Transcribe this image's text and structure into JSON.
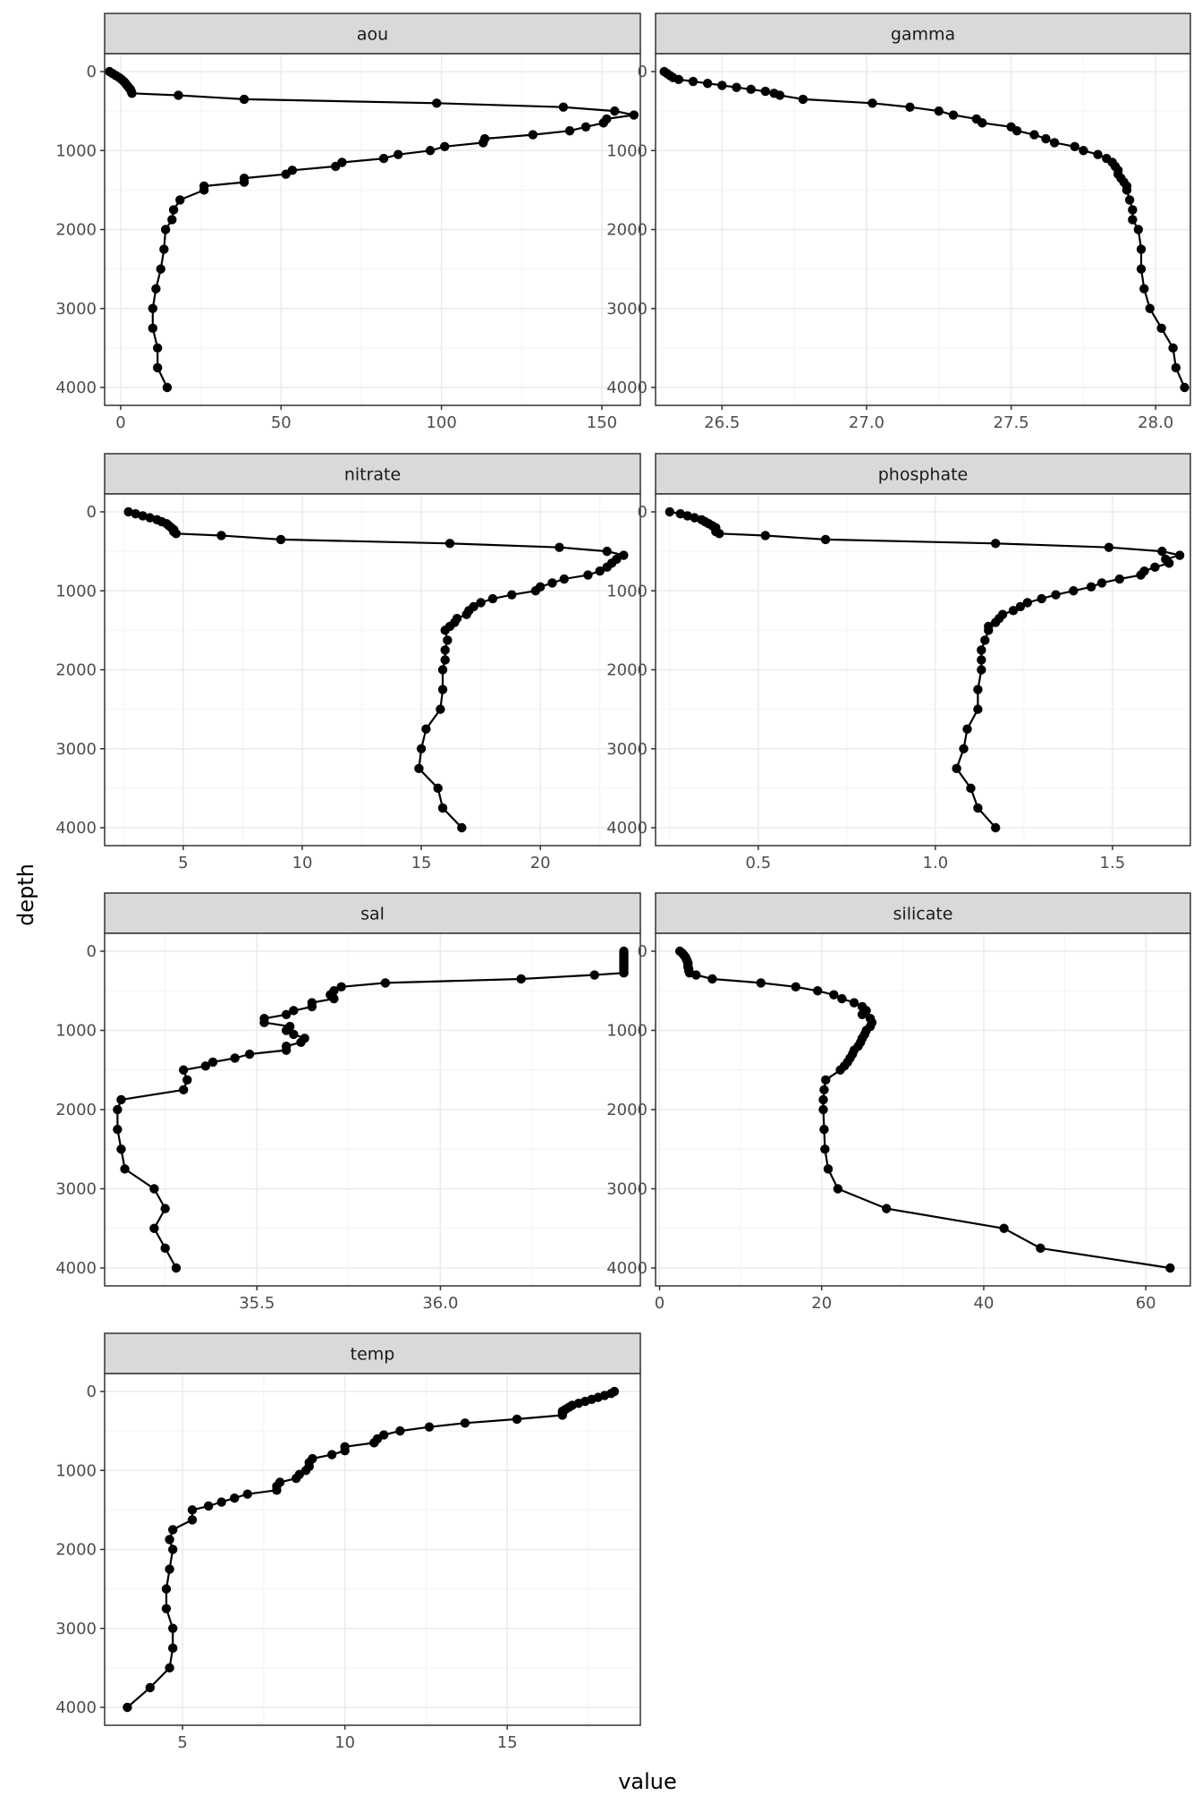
{
  "chart_data": {
    "type": "scatter",
    "layout": "facet_wrap",
    "xlabel": "value",
    "ylabel": "depth",
    "y_reversed": true,
    "ylim": [
      4000,
      0
    ],
    "yticks": [
      0,
      1000,
      2000,
      3000,
      4000
    ],
    "colors": {
      "point": "#000000",
      "line": "#000000",
      "strip_fill": "#d9d9d9",
      "strip_border": "#333333",
      "panel_border": "#333333",
      "grid_major": "#ebebeb",
      "grid_minor": "#f4f4f4"
    },
    "grid": true,
    "depth": [
      0,
      25,
      50,
      75,
      100,
      125,
      150,
      175,
      200,
      225,
      250,
      275,
      300,
      350,
      400,
      450,
      500,
      550,
      600,
      650,
      700,
      750,
      800,
      850,
      900,
      950,
      1000,
      1050,
      1100,
      1150,
      1200,
      1250,
      1300,
      1350,
      1400,
      1450,
      1500,
      1625,
      1750,
      1875,
      2000,
      2250,
      2500,
      2750,
      3000,
      3250,
      3500,
      3750,
      4000
    ],
    "facets": [
      {
        "name": "aou",
        "xlim": [
          -5,
          162
        ],
        "xticks": [
          0,
          50,
          100,
          150
        ],
        "xtick_labels": [
          "0",
          "50",
          "100",
          "150"
        ],
        "values": [
          -3.5,
          -2.5,
          -1.5,
          -0.5,
          0.3,
          1.0,
          1.5,
          2.0,
          2.5,
          3.0,
          3.3,
          3.5,
          18.0,
          38.5,
          98.5,
          138.0,
          154.0,
          160.0,
          151.5,
          150.5,
          145.0,
          140.0,
          128.5,
          113.5,
          113.0,
          101.0,
          96.5,
          86.5,
          82.0,
          69.0,
          67.0,
          53.5,
          51.5,
          38.5,
          38.5,
          26.0,
          26.0,
          18.5,
          16.5,
          16.0,
          14.0,
          13.5,
          12.5,
          11.0,
          10.0,
          10.0,
          11.5,
          11.5,
          14.5
        ]
      },
      {
        "name": "gamma",
        "xlim": [
          26.27,
          28.12
        ],
        "xticks": [
          26.5,
          27.0,
          27.5,
          28.0
        ],
        "xtick_labels": [
          "26.5",
          "27.0",
          "27.5",
          "28.0"
        ],
        "values": [
          26.3,
          26.31,
          26.32,
          26.33,
          26.35,
          26.4,
          26.45,
          26.5,
          26.55,
          26.6,
          26.65,
          26.68,
          26.7,
          26.78,
          27.02,
          27.15,
          27.25,
          27.3,
          27.38,
          27.4,
          27.5,
          27.52,
          27.58,
          27.62,
          27.65,
          27.72,
          27.75,
          27.8,
          27.83,
          27.85,
          27.86,
          27.87,
          27.87,
          27.88,
          27.89,
          27.9,
          27.9,
          27.91,
          27.92,
          27.92,
          27.94,
          27.95,
          27.95,
          27.96,
          27.98,
          28.02,
          28.06,
          28.07,
          28.1
        ]
      },
      {
        "name": "nitrate",
        "xlim": [
          1.7,
          24.2
        ],
        "xticks": [
          5,
          10,
          15,
          20
        ],
        "xtick_labels": [
          "5",
          "10",
          "15",
          "20"
        ],
        "values": [
          2.7,
          3.0,
          3.3,
          3.6,
          3.9,
          4.1,
          4.3,
          4.4,
          4.5,
          4.6,
          4.6,
          4.7,
          6.6,
          9.1,
          16.2,
          20.8,
          22.8,
          23.5,
          23.2,
          23.0,
          22.8,
          22.5,
          22.0,
          21.0,
          20.5,
          20.0,
          19.8,
          18.8,
          18.0,
          17.5,
          17.2,
          17.0,
          16.9,
          16.5,
          16.4,
          16.2,
          16.0,
          16.1,
          16.0,
          16.0,
          15.9,
          15.9,
          15.8,
          15.2,
          15.0,
          14.9,
          15.7,
          15.9,
          16.7
        ]
      },
      {
        "name": "phosphate",
        "xlim": [
          0.21,
          1.72
        ],
        "xticks": [
          0.5,
          1.0,
          1.5
        ],
        "xtick_labels": [
          "0.5",
          "1.0",
          "1.5"
        ],
        "values": [
          0.25,
          0.28,
          0.3,
          0.32,
          0.34,
          0.35,
          0.36,
          0.37,
          0.38,
          0.38,
          0.38,
          0.39,
          0.52,
          0.69,
          1.17,
          1.49,
          1.64,
          1.69,
          1.65,
          1.66,
          1.62,
          1.59,
          1.58,
          1.52,
          1.47,
          1.44,
          1.39,
          1.34,
          1.3,
          1.26,
          1.24,
          1.22,
          1.19,
          1.18,
          1.17,
          1.15,
          1.15,
          1.14,
          1.13,
          1.13,
          1.13,
          1.12,
          1.12,
          1.09,
          1.08,
          1.06,
          1.1,
          1.12,
          1.17
        ]
      },
      {
        "name": "sal",
        "xlim": [
          35.085,
          36.545
        ],
        "xticks": [
          35.5,
          36.0
        ],
        "xtick_labels": [
          "35.5",
          "36.0"
        ],
        "values": [
          36.5,
          36.5,
          36.5,
          36.5,
          36.5,
          36.5,
          36.5,
          36.5,
          36.5,
          36.5,
          36.5,
          36.5,
          36.42,
          36.22,
          35.85,
          35.73,
          35.71,
          35.7,
          35.71,
          35.65,
          35.65,
          35.6,
          35.58,
          35.52,
          35.52,
          35.59,
          35.58,
          35.6,
          35.63,
          35.62,
          35.58,
          35.58,
          35.48,
          35.44,
          35.38,
          35.36,
          35.3,
          35.31,
          35.3,
          35.13,
          35.12,
          35.12,
          35.13,
          35.14,
          35.22,
          35.25,
          35.22,
          35.25,
          35.28
        ]
      },
      {
        "name": "silicate",
        "xlim": [
          -0.5,
          65.5
        ],
        "xticks": [
          0,
          20,
          40,
          60
        ],
        "xtick_labels": [
          "0",
          "20",
          "40",
          "60"
        ],
        "values": [
          2.5,
          2.8,
          3.0,
          3.2,
          3.3,
          3.4,
          3.5,
          3.5,
          3.5,
          3.6,
          3.6,
          3.7,
          4.5,
          6.5,
          12.5,
          16.8,
          19.5,
          21.5,
          22.5,
          24.0,
          25.0,
          25.5,
          25.0,
          26.0,
          26.2,
          26.0,
          25.5,
          25.3,
          25.0,
          24.8,
          24.5,
          24.0,
          23.8,
          23.5,
          23.2,
          22.8,
          22.3,
          20.5,
          20.3,
          20.2,
          20.2,
          20.3,
          20.4,
          20.8,
          22.0,
          28.0,
          42.5,
          47.0,
          63.0
        ]
      },
      {
        "name": "temp",
        "xlim": [
          2.6,
          19.1
        ],
        "xticks": [
          5,
          10,
          15
        ],
        "xtick_labels": [
          "5",
          "10",
          "15"
        ],
        "values": [
          18.3,
          18.2,
          18.0,
          17.8,
          17.6,
          17.4,
          17.2,
          17.0,
          16.9,
          16.8,
          16.7,
          16.7,
          16.7,
          15.3,
          13.7,
          12.6,
          11.7,
          11.2,
          11.0,
          10.9,
          10.0,
          10.0,
          9.6,
          9.0,
          8.9,
          8.9,
          8.8,
          8.6,
          8.5,
          8.0,
          7.9,
          7.9,
          7.0,
          6.6,
          6.2,
          5.8,
          5.3,
          5.3,
          4.7,
          4.6,
          4.7,
          4.6,
          4.5,
          4.5,
          4.7,
          4.7,
          4.6,
          4.0,
          3.3
        ]
      }
    ]
  }
}
